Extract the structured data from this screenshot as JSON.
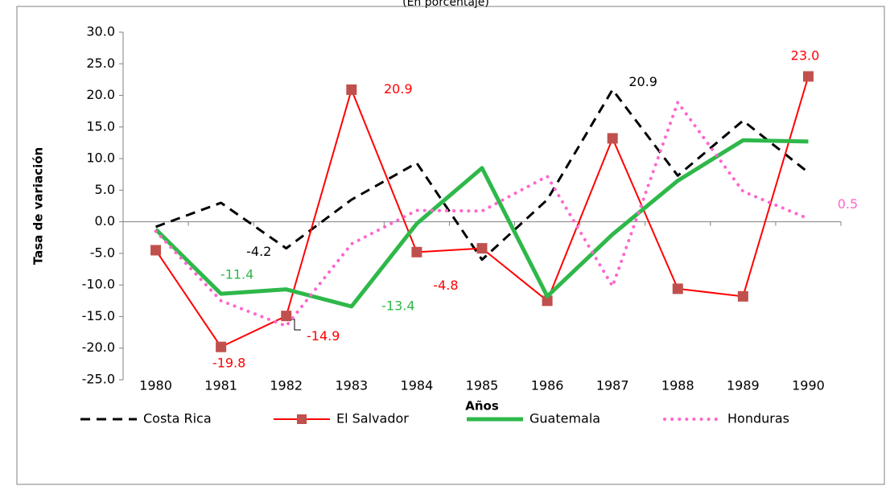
{
  "chart_data": {
    "type": "line",
    "subtitle": "(En porcentaje)",
    "y_label": "Tasa de variación",
    "x_label": "Años",
    "categories": [
      "1980",
      "1981",
      "1982",
      "1983",
      "1984",
      "1985",
      "1986",
      "1987",
      "1988",
      "1989",
      "1990"
    ],
    "series": [
      {
        "name": "Costa Rica",
        "color": "#000000",
        "values": [
          -0.8,
          3.0,
          -4.2,
          3.5,
          9.3,
          -6.0,
          3.5,
          20.9,
          7.3,
          16.0,
          7.8
        ],
        "value_labels": [
          null,
          null,
          "-4.2",
          null,
          null,
          null,
          null,
          "20.9",
          null,
          null,
          null
        ]
      },
      {
        "name": "El Salvador",
        "color": "#ff0000",
        "values": [
          -4.5,
          -19.8,
          -14.9,
          20.9,
          -4.8,
          -4.2,
          -12.5,
          13.2,
          -10.6,
          -11.8,
          23.0
        ],
        "value_labels": [
          null,
          "-19.8",
          "-14.9",
          "20.9",
          "-4.8",
          null,
          null,
          null,
          null,
          null,
          "23.0"
        ]
      },
      {
        "name": "Guatemala",
        "color": "#2eb84a",
        "values": [
          -1.2,
          -11.4,
          -10.7,
          -13.4,
          -0.3,
          8.5,
          -11.8,
          -2.0,
          6.5,
          12.9,
          12.7
        ],
        "value_labels": [
          null,
          "-11.4",
          null,
          "-13.4",
          null,
          null,
          null,
          null,
          null,
          null,
          null
        ]
      },
      {
        "name": "Honduras",
        "color": "#ff66cc",
        "values": [
          -1.5,
          -12.5,
          -16.5,
          -3.5,
          1.8,
          1.7,
          7.2,
          -10.2,
          18.9,
          4.8,
          0.5
        ],
        "value_labels": [
          null,
          null,
          null,
          null,
          null,
          null,
          null,
          null,
          null,
          null,
          "0.5"
        ]
      }
    ],
    "ylim": [
      -25,
      30
    ],
    "yticks": [
      {
        "value": -25,
        "label": "-25.0"
      },
      {
        "value": -20,
        "label": "-20.0"
      },
      {
        "value": -15,
        "label": "-15.0"
      },
      {
        "value": -10,
        "label": "-10.0"
      },
      {
        "value": -5,
        "label": "-5.0"
      },
      {
        "value": 0,
        "label": "0.0"
      },
      {
        "value": 5,
        "label": "5.0"
      },
      {
        "value": 10,
        "label": "10.0"
      },
      {
        "value": 15,
        "label": "15.0"
      },
      {
        "value": 20,
        "label": "20.0"
      },
      {
        "value": 25,
        "label": "25.0"
      },
      {
        "value": 30,
        "label": "30.0"
      }
    ],
    "legend": "bottom"
  }
}
